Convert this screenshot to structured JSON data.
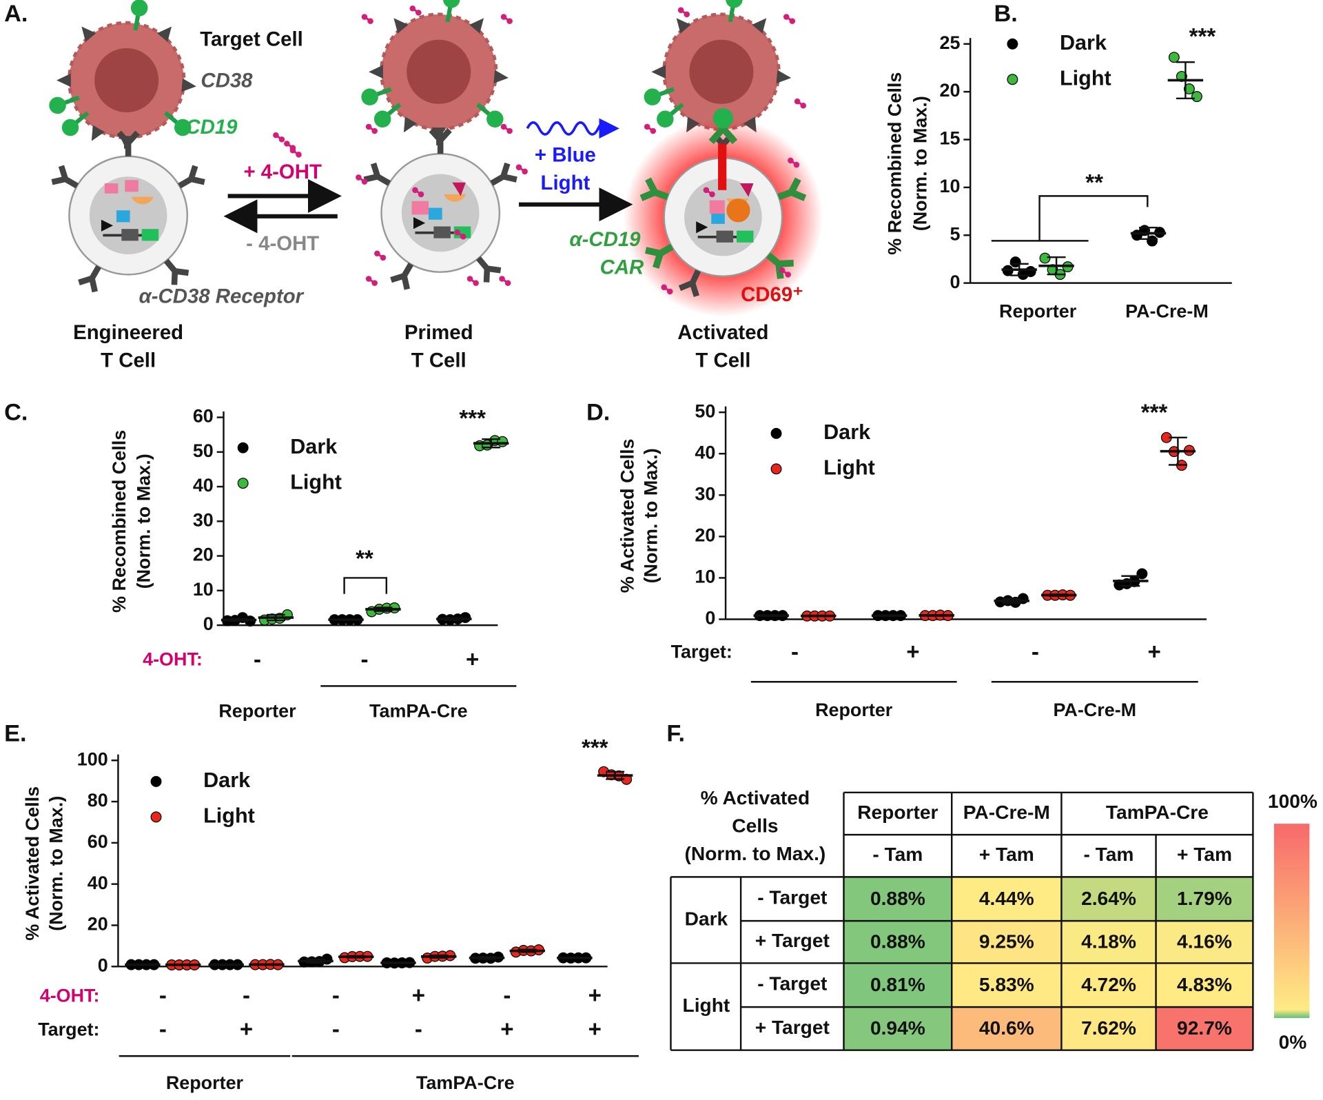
{
  "diagram": {
    "label": "A.",
    "target_cell": "Target Cell",
    "cd38": "CD38",
    "cd19": "CD19",
    "plus_4oht": "+ 4-OHT",
    "minus_4oht": "- 4-OHT",
    "receptor": "α-CD38 Receptor",
    "blue_light": [
      "+ Blue",
      "Light"
    ],
    "car": [
      "α-CD19",
      "CAR"
    ],
    "cd69": "CD69⁺",
    "cell_labels": [
      [
        "Engineered",
        "T Cell"
      ],
      [
        "Primed",
        "T Cell"
      ],
      [
        "Activated",
        "T Cell"
      ]
    ]
  },
  "chart_data": [
    {
      "type": "dot",
      "label": "B.",
      "y_label": [
        "% Recombined Cells",
        "(Norm. to Max.)"
      ],
      "categories": [
        "Reporter",
        "PA-Cre-M"
      ],
      "ylim": [
        0,
        25
      ],
      "yticks": [
        0,
        5,
        10,
        15,
        20,
        25
      ],
      "series": [
        {
          "name": "Dark",
          "color": "#000000",
          "values": [
            1.4,
            5.2
          ],
          "errors": [
            0.6,
            0.6
          ],
          "points": [
            [
              1.3,
              2.2,
              0.9,
              1.2
            ],
            [
              5.0,
              5.5,
              4.4,
              5.3
            ]
          ]
        },
        {
          "name": "Light",
          "color": "#3cb93c",
          "values": [
            1.8,
            21.2
          ],
          "errors": [
            0.9,
            1.9
          ],
          "points": [
            [
              2.6,
              1.4,
              0.9,
              1.7
            ],
            [
              23.6,
              21.6,
              20.3,
              19.5
            ]
          ]
        }
      ],
      "annotations": [
        "***",
        "**"
      ]
    },
    {
      "type": "dot",
      "label": "C.",
      "y_label": [
        "% Recombined Cells",
        "(Norm. to Max.)"
      ],
      "conditions": [
        {
          "name": "4-OHT:",
          "color": "#d4006e"
        }
      ],
      "groups": [
        {
          "name": "Reporter",
          "conditions": [
            [
              "-"
            ]
          ]
        },
        {
          "name": "TamPA-Cre",
          "conditions": [
            [
              "-"
            ],
            [
              "+"
            ]
          ]
        }
      ],
      "ylim": [
        0,
        60
      ],
      "yticks": [
        0,
        10,
        20,
        30,
        40,
        50,
        60
      ],
      "series": [
        {
          "name": "Dark",
          "color": "#000000",
          "values": [
            1.5,
            1.6,
            1.8
          ],
          "errors": [
            0.3,
            0.1,
            0.3
          ],
          "points": [
            [
              1.3,
              1.4,
              2.2,
              1.2
            ],
            [
              1.6,
              1.6,
              1.6,
              1.6
            ],
            [
              1.7,
              1.6,
              1.8,
              2.2
            ]
          ]
        },
        {
          "name": "Light",
          "color": "#3cb93c",
          "values": [
            2.2,
            4.6,
            52.5
          ],
          "errors": [
            0.8,
            0.5,
            1.2
          ],
          "points": [
            [
              1.5,
              1.8,
              2.0,
              3.0
            ],
            [
              3.9,
              4.6,
              4.9,
              5.0
            ],
            [
              51.8,
              52.0,
              53.3,
              53.0
            ]
          ]
        }
      ],
      "annotations": [
        "***",
        "**"
      ]
    },
    {
      "type": "dot",
      "label": "D.",
      "y_label": [
        "% Activated Cells",
        "(Norm. to Max.)"
      ],
      "conditions": [
        {
          "name": "Target:",
          "color": "#111111"
        }
      ],
      "groups": [
        {
          "name": "Reporter",
          "conditions": [
            [
              "-"
            ],
            [
              "+"
            ]
          ]
        },
        {
          "name": "PA-Cre-M",
          "conditions": [
            [
              "-"
            ],
            [
              "+"
            ]
          ]
        }
      ],
      "ylim": [
        0,
        50
      ],
      "yticks": [
        0,
        10,
        20,
        30,
        40,
        50
      ],
      "series": [
        {
          "name": "Dark",
          "color": "#000000",
          "values": [
            0.88,
            0.88,
            4.44,
            9.25
          ],
          "errors": [
            0.1,
            0.1,
            0.5,
            1.2
          ],
          "points": [
            [
              0.9,
              0.9,
              0.9,
              0.9
            ],
            [
              0.9,
              0.9,
              0.9,
              0.9
            ],
            [
              4.2,
              4.5,
              4.1,
              5.0
            ],
            [
              8.3,
              8.6,
              9.1,
              11.0
            ]
          ]
        },
        {
          "name": "Light",
          "color": "#e8261c",
          "values": [
            0.81,
            0.94,
            5.83,
            40.6
          ],
          "errors": [
            0.1,
            0.1,
            0.2,
            3.3
          ],
          "points": [
            [
              0.8,
              0.8,
              0.8,
              0.8
            ],
            [
              0.9,
              0.9,
              1.0,
              0.9
            ],
            [
              5.8,
              5.8,
              5.9,
              5.8
            ],
            [
              43.9,
              40.5,
              37.2,
              40.8
            ]
          ]
        }
      ],
      "annotations": [
        "***"
      ]
    },
    {
      "type": "dot",
      "label": "E.",
      "y_label": [
        "% Activated Cells",
        "(Norm. to Max.)"
      ],
      "conditions": [
        {
          "name": "4-OHT:",
          "color": "#d4006e"
        },
        {
          "name": "Target:",
          "color": "#111111"
        }
      ],
      "groups": [
        {
          "name": "Reporter",
          "conditions": [
            [
              "-",
              "-"
            ],
            [
              "-",
              "+"
            ]
          ]
        },
        {
          "name": "TamPA-Cre",
          "conditions": [
            [
              "-",
              "-"
            ],
            [
              "+",
              "-"
            ],
            [
              "-",
              "+"
            ],
            [
              "+",
              "+"
            ]
          ]
        }
      ],
      "ylim": [
        0,
        100
      ],
      "yticks": [
        0,
        20,
        40,
        60,
        80,
        100
      ],
      "series": [
        {
          "name": "Dark",
          "color": "#000000",
          "values": [
            0.88,
            0.88,
            2.64,
            1.79,
            4.18,
            4.16
          ],
          "errors": [
            0.1,
            0.1,
            0.8,
            0.2,
            0.5,
            0.2
          ],
          "points": [
            [
              0.9,
              0.9,
              0.9,
              0.9
            ],
            [
              0.9,
              0.9,
              0.9,
              0.9
            ],
            [
              2.2,
              2.3,
              2.4,
              3.6
            ],
            [
              1.8,
              1.7,
              1.8,
              1.9
            ],
            [
              4.0,
              4.1,
              4.0,
              4.6
            ],
            [
              4.2,
              4.1,
              4.2,
              4.2
            ]
          ]
        },
        {
          "name": "Light",
          "color": "#e8261c",
          "values": [
            0.81,
            0.94,
            4.72,
            4.83,
            7.62,
            92.7
          ],
          "errors": [
            0.1,
            0.1,
            0.4,
            0.6,
            0.6,
            1.8
          ],
          "points": [
            [
              0.8,
              0.8,
              0.8,
              0.8
            ],
            [
              0.9,
              0.9,
              1.0,
              0.9
            ],
            [
              4.3,
              4.8,
              4.9,
              4.9
            ],
            [
              4.1,
              4.9,
              5.0,
              5.3
            ],
            [
              7.0,
              7.8,
              7.6,
              8.1
            ],
            [
              94.5,
              93.0,
              92.5,
              90.8
            ]
          ]
        }
      ],
      "annotations": [
        "***"
      ]
    }
  ],
  "table": {
    "type": "heatmap",
    "label": "F.",
    "corner": [
      "% Activated",
      "Cells",
      "(Norm. to Max.)"
    ],
    "column_groups": [
      {
        "name": "Reporter",
        "columns": [
          "- Tam"
        ]
      },
      {
        "name": "PA-Cre-M",
        "columns": [
          "+ Tam"
        ]
      },
      {
        "name": "TamPA-Cre",
        "columns": [
          "- Tam",
          "+ Tam"
        ]
      }
    ],
    "row_groups": [
      {
        "name": "Dark",
        "rows": [
          "- Target",
          "+ Target"
        ]
      },
      {
        "name": "Light",
        "rows": [
          "- Target",
          "+ Target"
        ]
      }
    ],
    "values": [
      [
        0.88,
        4.44,
        2.64,
        1.79
      ],
      [
        0.88,
        9.25,
        4.18,
        4.16
      ],
      [
        0.81,
        5.83,
        4.72,
        4.83
      ],
      [
        0.94,
        40.6,
        7.62,
        92.7
      ]
    ],
    "value_labels": [
      [
        "0.88%",
        "4.44%",
        "2.64%",
        "1.79%"
      ],
      [
        "0.88%",
        "9.25%",
        "4.18%",
        "4.16%"
      ],
      [
        "0.81%",
        "5.83%",
        "4.72%",
        "4.83%"
      ],
      [
        "0.94%",
        "40.6%",
        "7.62%",
        "92.7%"
      ]
    ],
    "clim": [
      0,
      100
    ],
    "colors": [
      "#63be7b",
      "#ffeb84",
      "#f8696b"
    ],
    "cbar_ticks": [
      {
        "value": 100,
        "label": "100%"
      },
      {
        "value": 0,
        "label": "0%"
      }
    ]
  }
}
